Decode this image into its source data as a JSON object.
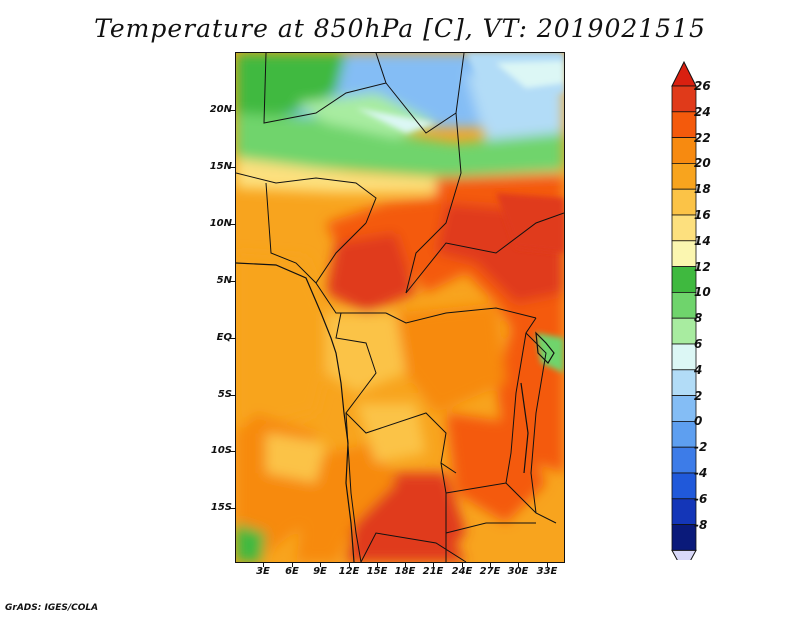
{
  "title": "Temperature at 850hPa [C], VT: 2019021515",
  "credit": "GrADS: IGES/COLA",
  "lat_labels": [
    "20N",
    "15N",
    "10N",
    "5N",
    "EQ",
    "5S",
    "10S",
    "15S"
  ],
  "lon_labels": [
    "3E",
    "6E",
    "9E",
    "12E",
    "15E",
    "18E",
    "21E",
    "24E",
    "27E",
    "30E",
    "33E"
  ],
  "colorbar": {
    "labels": [
      "26",
      "24",
      "22",
      "20",
      "18",
      "16",
      "14",
      "12",
      "10",
      "8",
      "6",
      "4",
      "2",
      "0",
      "-2",
      "-4",
      "-6",
      "-8"
    ],
    "colors": [
      "#e03a1a",
      "#f45a0c",
      "#f78a10",
      "#f8a41e",
      "#fbc347",
      "#fde07e",
      "#fbf6b0",
      "#3fb93f",
      "#6fd46c",
      "#a8eca0",
      "#dcf7f5",
      "#b2dcf7",
      "#84bdf5",
      "#5e9ff0",
      "#3d7ce8",
      "#2059da",
      "#1436b8",
      "#0a1a7a"
    ],
    "top_arrow_color": "#d92010",
    "bottom_arrow_color": "#d8d8f8"
  }
}
